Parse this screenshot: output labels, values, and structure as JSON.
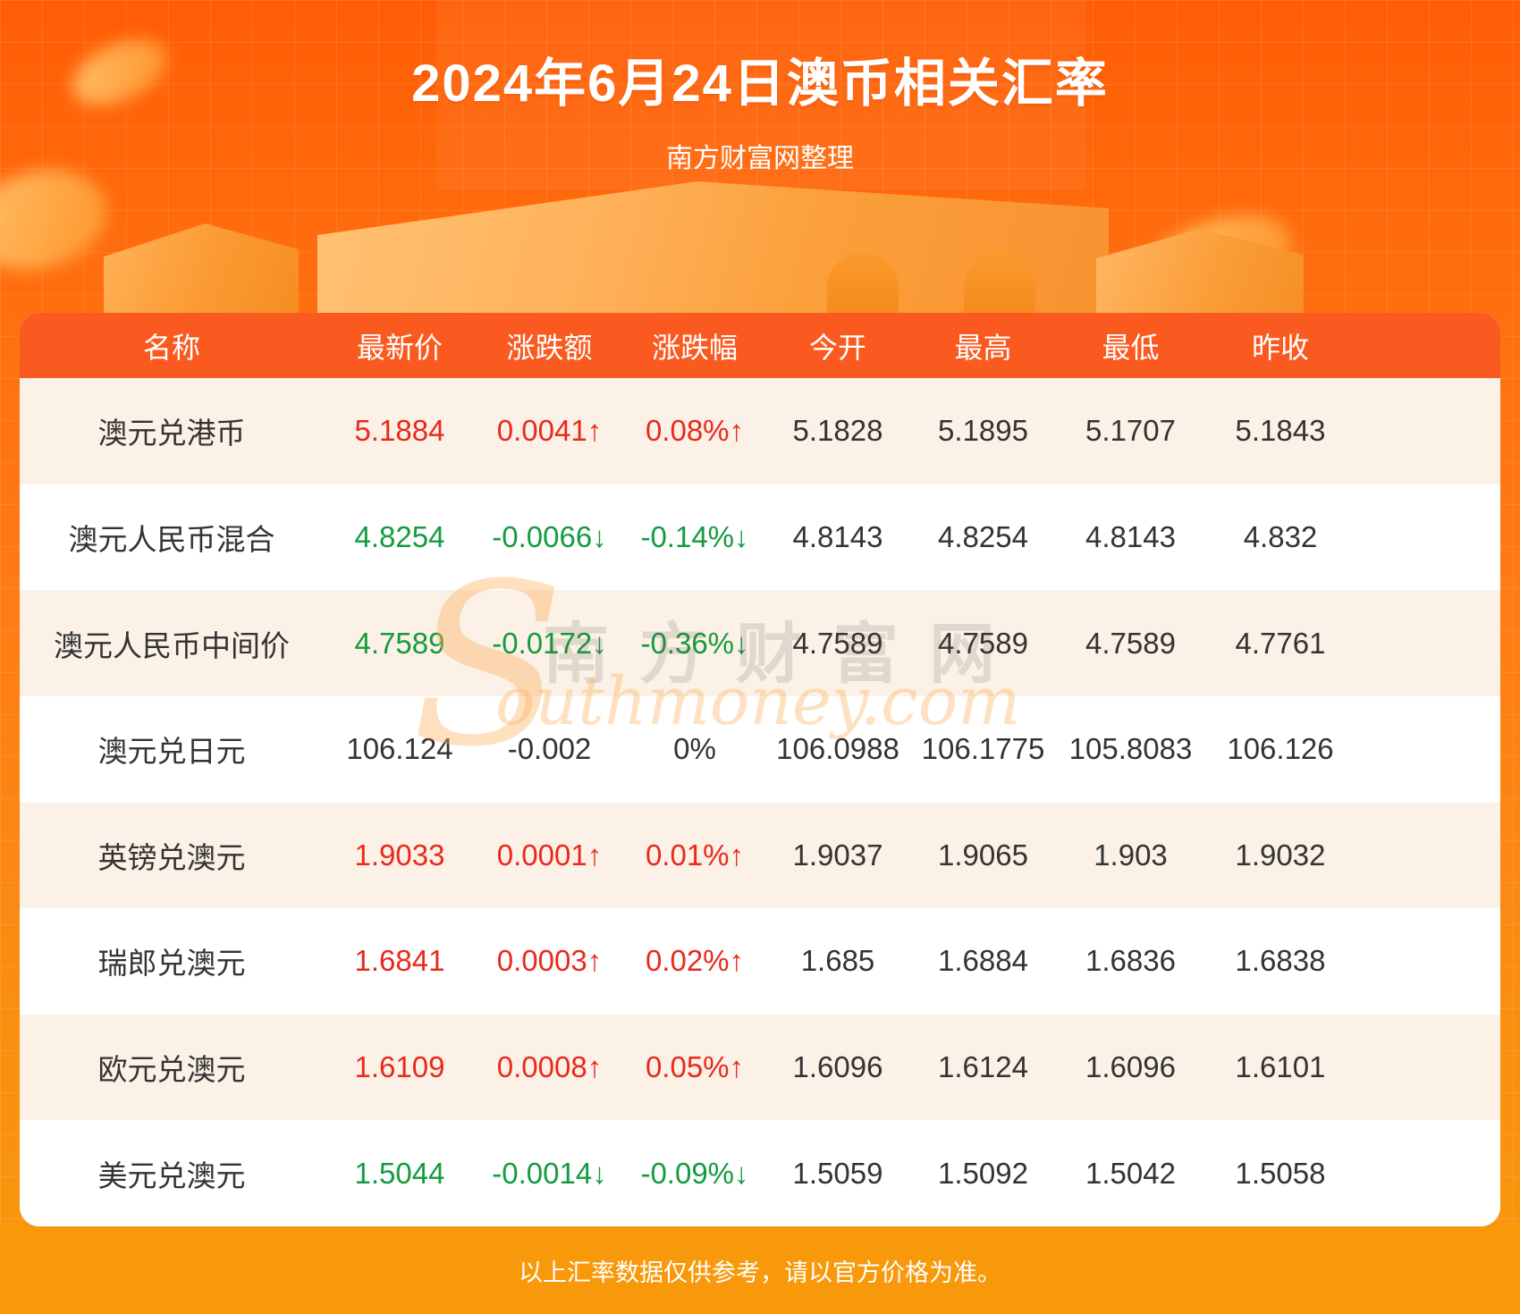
{
  "page": {
    "title": "2024年6月24日澳币相关汇率",
    "subtitle": "南方财富网整理",
    "footer_note": "以上汇率数据仅供参考，请以官方价格为准。",
    "watermark": {
      "initial": "S",
      "cn": "南方财富网",
      "en": "outhmoney.com"
    }
  },
  "colors": {
    "header_bg": "#FA5A20",
    "row_alt_bg": "#FCF1E6",
    "up_red": "#E8291C",
    "down_green": "#149B3F",
    "neutral_text": "#333333",
    "footer_bg": "#F8990B"
  },
  "chart_data": {
    "type": "table",
    "title": "2024年6月24日澳币相关汇率",
    "source_note": "南方财富网整理",
    "columns": [
      "名称",
      "最新价",
      "涨跌额",
      "涨跌幅",
      "今开",
      "最高",
      "最低",
      "昨收"
    ],
    "rows": [
      [
        "澳元兑港币",
        "5.1884",
        "0.0041↑",
        "0.08%↑",
        "5.1828",
        "5.1895",
        "5.1707",
        "5.1843"
      ],
      [
        "澳元人民币混合",
        "4.8254",
        "-0.0066↓",
        "-0.14%↓",
        "4.8143",
        "4.8254",
        "4.8143",
        "4.832"
      ],
      [
        "澳元人民币中间价",
        "4.7589",
        "-0.0172↓",
        "-0.36%↓",
        "4.7589",
        "4.7589",
        "4.7589",
        "4.7761"
      ],
      [
        "澳元兑日元",
        "106.124",
        "-0.002",
        "0%",
        "106.0988",
        "106.1775",
        "105.8083",
        "106.126"
      ],
      [
        "英镑兑澳元",
        "1.9033",
        "0.0001↑",
        "0.01%↑",
        "1.9037",
        "1.9065",
        "1.903",
        "1.9032"
      ],
      [
        "瑞郎兑澳元",
        "1.6841",
        "0.0003↑",
        "0.02%↑",
        "1.685",
        "1.6884",
        "1.6836",
        "1.6838"
      ],
      [
        "欧元兑澳元",
        "1.6109",
        "0.0008↑",
        "0.05%↑",
        "1.6096",
        "1.6124",
        "1.6096",
        "1.6101"
      ],
      [
        "美元兑澳元",
        "1.5044",
        "-0.0014↓",
        "-0.09%↓",
        "1.5059",
        "1.5092",
        "1.5042",
        "1.5058"
      ]
    ],
    "row_trends": [
      "up",
      "down",
      "down",
      "flat",
      "up",
      "up",
      "up",
      "down"
    ]
  }
}
